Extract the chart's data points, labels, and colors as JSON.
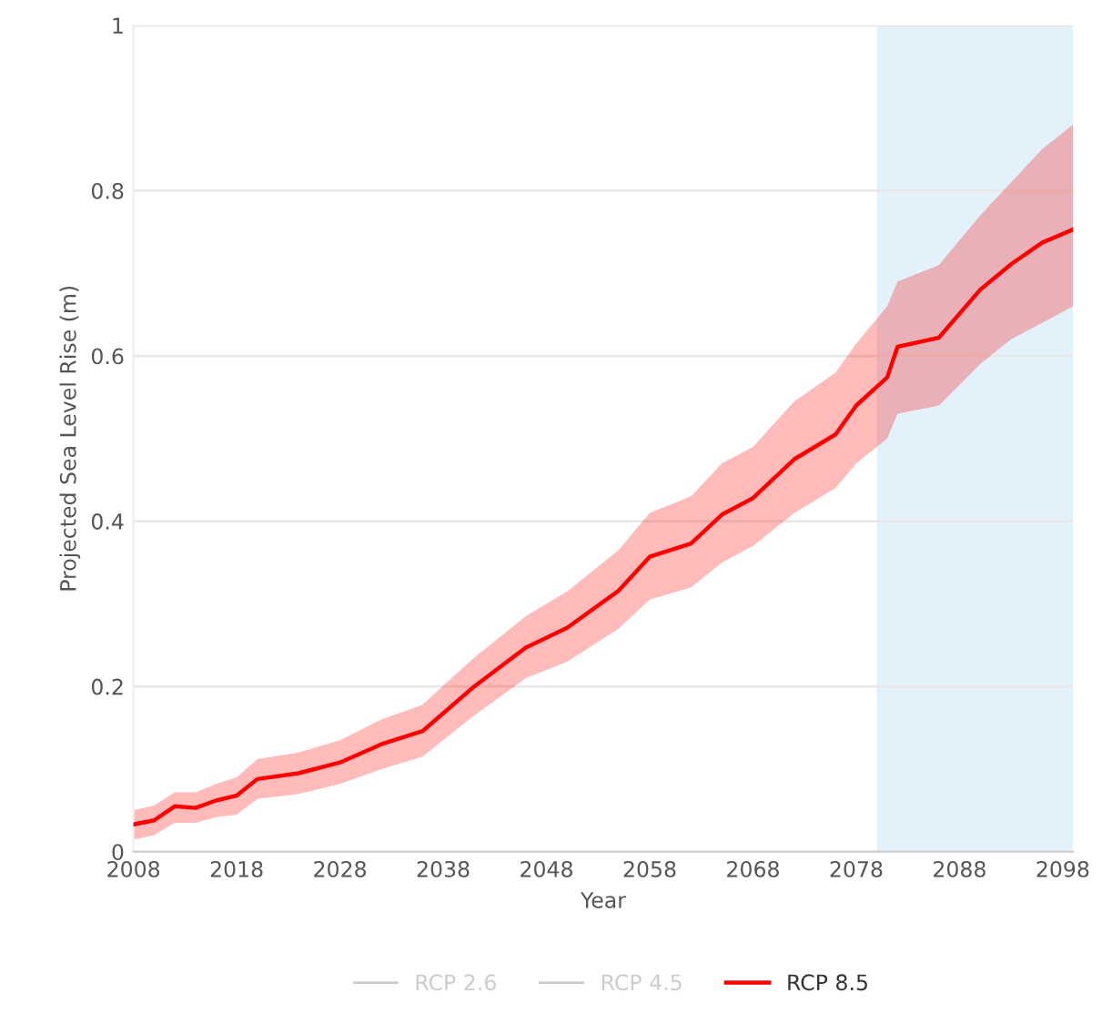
{
  "chart_data": {
    "type": "line",
    "xlabel": "Year",
    "ylabel": "Projected Sea Level Rise (m)",
    "x": [
      2008,
      2010,
      2012,
      2014,
      2016,
      2018,
      2020,
      2024,
      2028,
      2032,
      2036,
      2041,
      2046,
      2050,
      2055,
      2058,
      2062,
      2065,
      2068,
      2072,
      2076,
      2078,
      2081,
      2082,
      2086,
      2090,
      2093,
      2096,
      2099
    ],
    "series": [
      {
        "name": "RCP 2.6",
        "color": "#cccccc",
        "values": [
          null,
          null,
          null,
          null,
          null,
          null,
          null,
          null,
          null,
          null,
          null,
          null,
          null,
          null,
          null,
          null,
          null,
          null,
          null,
          null,
          null,
          null,
          null,
          null,
          null,
          null,
          null,
          null,
          null
        ]
      },
      {
        "name": "RCP 4.5",
        "color": "#cccccc",
        "values": [
          null,
          null,
          null,
          null,
          null,
          null,
          null,
          null,
          null,
          null,
          null,
          null,
          null,
          null,
          null,
          null,
          null,
          null,
          null,
          null,
          null,
          null,
          null,
          null,
          null,
          null,
          null,
          null,
          null
        ]
      },
      {
        "name": "RCP 8.5",
        "color": "#ff0000",
        "values": [
          0.033,
          0.038,
          0.055,
          0.053,
          0.062,
          0.068,
          0.088,
          0.095,
          0.108,
          0.13,
          0.146,
          0.2,
          0.247,
          0.271,
          0.316,
          0.357,
          0.373,
          0.408,
          0.428,
          0.475,
          0.505,
          0.54,
          0.574,
          0.611,
          0.622,
          0.68,
          0.711,
          0.737,
          0.753
        ],
        "lower": [
          0.015,
          0.02,
          0.035,
          0.035,
          0.042,
          0.045,
          0.064,
          0.07,
          0.082,
          0.1,
          0.115,
          0.165,
          0.21,
          0.23,
          0.27,
          0.305,
          0.32,
          0.35,
          0.37,
          0.41,
          0.44,
          0.47,
          0.5,
          0.53,
          0.54,
          0.59,
          0.62,
          0.64,
          0.66
        ],
        "upper": [
          0.05,
          0.056,
          0.072,
          0.072,
          0.082,
          0.09,
          0.112,
          0.12,
          0.135,
          0.16,
          0.178,
          0.235,
          0.285,
          0.315,
          0.365,
          0.41,
          0.43,
          0.47,
          0.49,
          0.545,
          0.58,
          0.615,
          0.66,
          0.69,
          0.71,
          0.77,
          0.81,
          0.85,
          0.88
        ]
      }
    ],
    "xlim": [
      2008,
      2099
    ],
    "xticks": [
      2008,
      2018,
      2028,
      2038,
      2048,
      2058,
      2068,
      2078,
      2088,
      2098
    ],
    "ylim": [
      0,
      1
    ],
    "yticks": [
      0,
      0.2,
      0.4,
      0.6,
      0.8,
      1
    ],
    "bands": [
      {
        "axis": "x",
        "from": 2080,
        "to": 2099,
        "color": "#e3f1fb"
      }
    ],
    "grid": "y",
    "legend": "bottom",
    "marker": "none",
    "line_style": "solid"
  }
}
